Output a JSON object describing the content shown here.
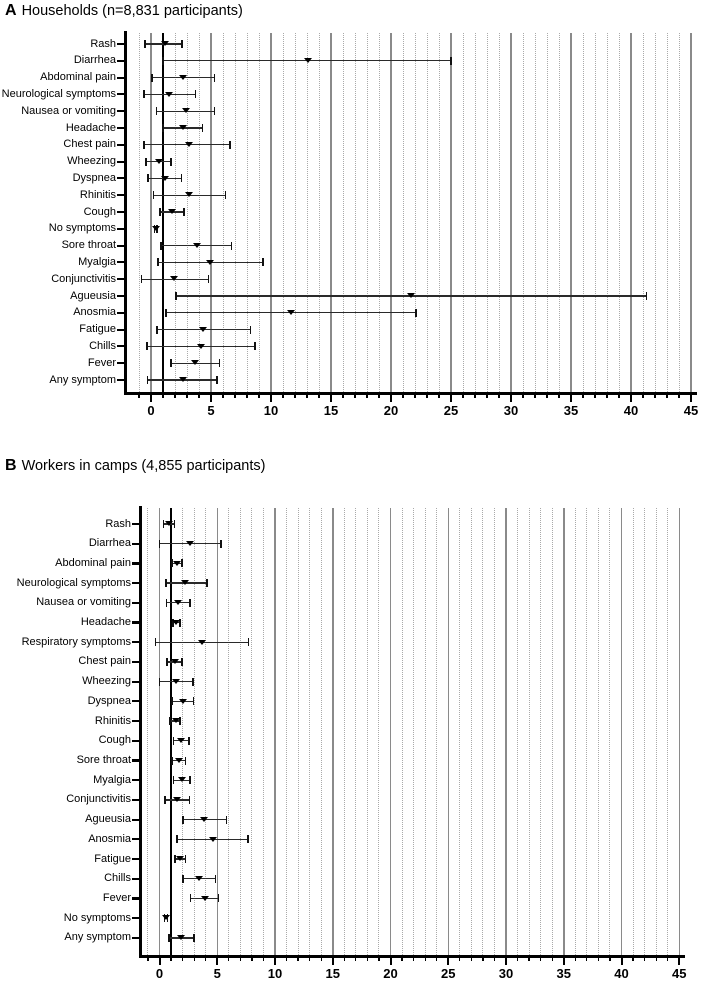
{
  "figure": {
    "background_color": "#ffffff",
    "text_color": "#000000",
    "reference_line_color": "#000000",
    "gridline_color": "#a9a9a9",
    "marker": "filled-down-triangle"
  },
  "chart_data": [
    {
      "type": "forest-errorbar",
      "panel_letter": "A",
      "title": "Households (n=8,831 participants)",
      "x_ticks": [
        0,
        5,
        10,
        15,
        20,
        25,
        30,
        35,
        40,
        45
      ],
      "x_minor_step": 1,
      "xlim": [
        -2,
        46
      ],
      "reference_line": 1,
      "grid": "vertical-dotted-minor-solid-major",
      "legend": "none",
      "rows": [
        {
          "label": "Rash",
          "est": 1.2,
          "lo": -0.5,
          "hi": 2.6
        },
        {
          "label": "Diarrhea",
          "est": 13.1,
          "lo": 1.0,
          "hi": 25.0
        },
        {
          "label": "Abdominal pain",
          "est": 2.7,
          "lo": 0.1,
          "hi": 5.3
        },
        {
          "label": "Neurological symptoms",
          "est": 1.5,
          "lo": -0.6,
          "hi": 3.7
        },
        {
          "label": "Nausea or vomiting",
          "est": 2.9,
          "lo": 0.45,
          "hi": 5.3
        },
        {
          "label": "Headache",
          "est": 2.65,
          "lo": 1.0,
          "hi": 4.3
        },
        {
          "label": "Chest pain",
          "est": 3.2,
          "lo": -0.6,
          "hi": 6.6
        },
        {
          "label": "Wheezing",
          "est": 0.65,
          "lo": -0.4,
          "hi": 1.65
        },
        {
          "label": "Dyspnea",
          "est": 1.15,
          "lo": -0.25,
          "hi": 2.55
        },
        {
          "label": "Rhinitis",
          "est": 3.2,
          "lo": 0.2,
          "hi": 6.2
        },
        {
          "label": "Cough",
          "est": 1.75,
          "lo": 0.75,
          "hi": 2.75
        },
        {
          "label": "No symptoms",
          "est": 0.38,
          "lo": 0.28,
          "hi": 0.5
        },
        {
          "label": "Sore throat",
          "est": 3.8,
          "lo": 0.85,
          "hi": 6.7
        },
        {
          "label": "Myalgia",
          "est": 4.9,
          "lo": 0.6,
          "hi": 9.35
        },
        {
          "label": "Conjunctivitis",
          "est": 1.95,
          "lo": -0.8,
          "hi": 4.8
        },
        {
          "label": "Agueusia",
          "est": 21.7,
          "lo": 2.1,
          "hi": 41.3
        },
        {
          "label": "Anosmia",
          "est": 11.65,
          "lo": 1.25,
          "hi": 22.1
        },
        {
          "label": "Fatigue",
          "est": 4.35,
          "lo": 0.5,
          "hi": 8.3
        },
        {
          "label": "Chills",
          "est": 4.15,
          "lo": -0.35,
          "hi": 8.65
        },
        {
          "label": "Fever",
          "est": 3.65,
          "lo": 1.65,
          "hi": 5.7
        },
        {
          "label": "Any symptom",
          "est": 2.65,
          "lo": -0.3,
          "hi": 5.5
        }
      ]
    },
    {
      "type": "forest-errorbar",
      "panel_letter": "B",
      "title": "Workers in camps (4,855 participants)",
      "x_ticks": [
        0,
        5,
        10,
        15,
        20,
        25,
        30,
        35,
        40,
        45
      ],
      "x_minor_step": 1,
      "xlim": [
        -2,
        46
      ],
      "reference_line": 1,
      "grid": "vertical-dotted-minor-solid-major",
      "legend": "none",
      "rows": [
        {
          "label": "Rash",
          "est": 0.84,
          "lo": 0.35,
          "hi": 1.3
        },
        {
          "label": "Diarrhea",
          "est": 2.65,
          "lo": 0.0,
          "hi": 5.3
        },
        {
          "label": "Abdominal pain",
          "est": 1.5,
          "lo": 1.1,
          "hi": 1.95
        },
        {
          "label": "Neurological symptoms",
          "est": 2.25,
          "lo": 0.55,
          "hi": 4.1
        },
        {
          "label": "Nausea or vomiting",
          "est": 1.6,
          "lo": 0.6,
          "hi": 2.65
        },
        {
          "label": "Headache",
          "est": 1.45,
          "lo": 1.15,
          "hi": 1.8
        },
        {
          "label": "Respiratory symptoms",
          "est": 3.65,
          "lo": -0.35,
          "hi": 7.7
        },
        {
          "label": "Chest pain",
          "est": 1.35,
          "lo": 0.65,
          "hi": 1.95
        },
        {
          "label": "Wheezing",
          "est": 1.45,
          "lo": 0.0,
          "hi": 2.9
        },
        {
          "label": "Dyspnea",
          "est": 2.0,
          "lo": 1.1,
          "hi": 2.95
        },
        {
          "label": "Rhinitis",
          "est": 1.4,
          "lo": 0.9,
          "hi": 1.8
        },
        {
          "label": "Cough",
          "est": 1.9,
          "lo": 1.2,
          "hi": 2.55
        },
        {
          "label": "Sore throat",
          "est": 1.7,
          "lo": 1.1,
          "hi": 2.25
        },
        {
          "label": "Myalgia",
          "est": 1.95,
          "lo": 1.2,
          "hi": 2.65
        },
        {
          "label": "Conjunctivitis",
          "est": 1.55,
          "lo": 0.5,
          "hi": 2.6
        },
        {
          "label": "Agueusia",
          "est": 3.85,
          "lo": 2.05,
          "hi": 5.8
        },
        {
          "label": "Anosmia",
          "est": 4.6,
          "lo": 1.5,
          "hi": 7.65
        },
        {
          "label": "Fatigue",
          "est": 1.8,
          "lo": 1.35,
          "hi": 2.25
        },
        {
          "label": "Chills",
          "est": 3.4,
          "lo": 2.05,
          "hi": 4.85
        },
        {
          "label": "Fever",
          "est": 3.9,
          "lo": 2.7,
          "hi": 5.1
        },
        {
          "label": "No symptoms",
          "est": 0.55,
          "lo": 0.45,
          "hi": 0.68
        },
        {
          "label": "Any symptom",
          "est": 1.9,
          "lo": 0.8,
          "hi": 3.0
        }
      ]
    }
  ]
}
